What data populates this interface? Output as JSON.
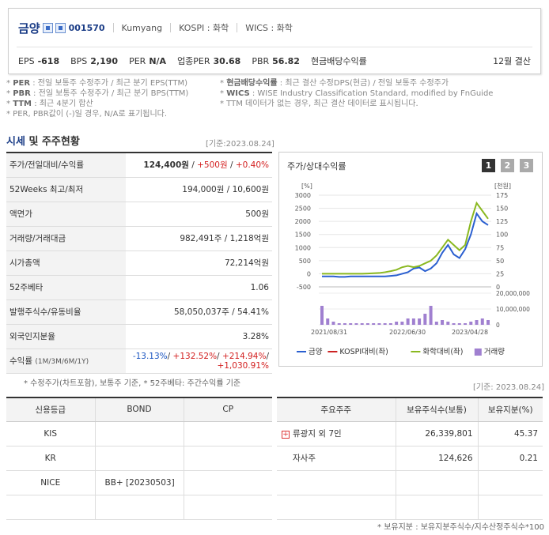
{
  "header": {
    "company_name": "금양",
    "code": "001570",
    "eng_name": "Kumyang",
    "market": "KOSPI : 화학",
    "wics": "WICS : 화학",
    "eps_label": "EPS",
    "eps": "-618",
    "bps_label": "BPS",
    "bps": "2,190",
    "per_label": "PER",
    "per": "N/A",
    "ind_per_label": "업종PER",
    "ind_per": "30.68",
    "pbr_label": "PBR",
    "pbr": "56.82",
    "div_label": "현금배당수익률",
    "settle": "12월 결산"
  },
  "notes": {
    "n1_key": "PER",
    "n1": ": 전일 보통주 수정주가 / 최근 분기 EPS(TTM)",
    "n2_key": "PBR",
    "n2": ": 전일 보통주 수정주가 / 최근 분기 BPS(TTM)",
    "n3_key": "TTM",
    "n3": ": 최근 4분기 합산",
    "n4": "* PER, PBR값이 (-)일 경우, N/A로 표기됩니다.",
    "n5_key": "현금배당수익률",
    "n5": ": 최근 결산 수정DPS(현금) / 전일 보통주 수정주가",
    "n6_key": "WICS",
    "n6": ": WISE Industry Classification Standard, modified by FnGuide",
    "n7": "* TTM 데이터가 없는 경우, 최근 결산 데이터로 표시됩니다."
  },
  "market_section": {
    "title_a": "시세",
    "title_b": " 및 주주현황",
    "base_date": "[기준:2023.08.24]",
    "rows": [
      {
        "label": "주가/전일대비/수익률",
        "price": "124,400원",
        "chg": "+500원",
        "pct": "+0.40%"
      },
      {
        "label": "52Weeks 최고/최저",
        "value": "194,000원 / 10,600원"
      },
      {
        "label": "액면가",
        "value": "500원"
      },
      {
        "label": "거래량/거래대금",
        "value": "982,491주 / 1,218억원"
      },
      {
        "label": "시가총액",
        "value": "72,214억원"
      },
      {
        "label": "52주베타",
        "value": "1.06"
      },
      {
        "label": "발행주식수/유동비율",
        "value": "58,050,037주 / 54.41%"
      },
      {
        "label": "외국인지분율",
        "value": "3.28%"
      },
      {
        "label": "수익률",
        "label_sub": "(1M/3M/6M/1Y)",
        "r1": "-13.13%",
        "r2": "+132.52%",
        "r3": "+214.94%",
        "r4": "+1,030.91%"
      }
    ],
    "note": "* 수정주가(차트포함), 보통주 기준, * 52주베타: 주간수익률 기준"
  },
  "chart": {
    "title": "주가/상대수익률",
    "pages": [
      "1",
      "2",
      "3"
    ],
    "active_page": "1"
  },
  "chart_data": {
    "type": "line",
    "left_axis_label": "[%]",
    "right_axis_label": "[천원]",
    "left_ticks": [
      3000,
      2500,
      2000,
      1500,
      1000,
      500,
      0,
      -500
    ],
    "right_ticks": [
      175,
      150,
      125,
      100,
      75,
      50,
      25,
      0
    ],
    "volume_ticks": [
      "20,000,000",
      "10,000,000",
      "0"
    ],
    "x_labels": [
      "2021/08/31",
      "2022/06/30",
      "2023/04/28"
    ],
    "series": [
      {
        "name": "금양",
        "color": "#2a5fd0",
        "axis": "right",
        "values": [
          20,
          20,
          20,
          19,
          19,
          20,
          20,
          20,
          20,
          20,
          20,
          20,
          21,
          22,
          25,
          28,
          35,
          37,
          30,
          35,
          45,
          65,
          80,
          62,
          55,
          72,
          100,
          140,
          125,
          118
        ]
      },
      {
        "name": "KOSPI대비(좌)",
        "color": "#cc2222",
        "axis": "left",
        "values": []
      },
      {
        "name": "화학대비(좌)",
        "color": "#8ab820",
        "axis": "left",
        "values": [
          0,
          0,
          0,
          0,
          0,
          0,
          0,
          0,
          10,
          20,
          30,
          60,
          100,
          150,
          250,
          300,
          250,
          300,
          400,
          500,
          700,
          1000,
          1300,
          1100,
          900,
          1100,
          2000,
          2700,
          2400,
          2100
        ]
      },
      {
        "name": "거래량",
        "color": "#a080d0",
        "type": "bar",
        "values": [
          12,
          4,
          2,
          1,
          1,
          1,
          1,
          1,
          1,
          1,
          1,
          1,
          1,
          2,
          2,
          4,
          4,
          4,
          7,
          12,
          2,
          3,
          2,
          1,
          1,
          1,
          2,
          3,
          4,
          3
        ]
      }
    ],
    "volume_series_index": 3
  },
  "credit": {
    "headers": [
      "신용등급",
      "BOND",
      "CP"
    ],
    "rows": [
      {
        "agency": "KIS",
        "bond": "",
        "cp": ""
      },
      {
        "agency": "KR",
        "bond": "",
        "cp": ""
      },
      {
        "agency": "NICE",
        "bond": "BB+  [20230503]",
        "cp": ""
      },
      {
        "agency": "",
        "bond": "",
        "cp": ""
      }
    ]
  },
  "holders": {
    "base_date": "[기준: 2023.08.24]",
    "headers": [
      "주요주주",
      "보유주식수(보통)",
      "보유지분(%)"
    ],
    "rows": [
      {
        "name": "류광지 외 7인",
        "shares": "26,339,801",
        "pct": "45.37",
        "expand": true
      },
      {
        "name": "자사주",
        "shares": "124,626",
        "pct": "0.21",
        "expand": false
      },
      {
        "name": "",
        "shares": "",
        "pct": ""
      },
      {
        "name": "",
        "shares": "",
        "pct": ""
      }
    ],
    "note": "* 보유지분 : 보유지분주식수/지수산정주식수*100"
  }
}
